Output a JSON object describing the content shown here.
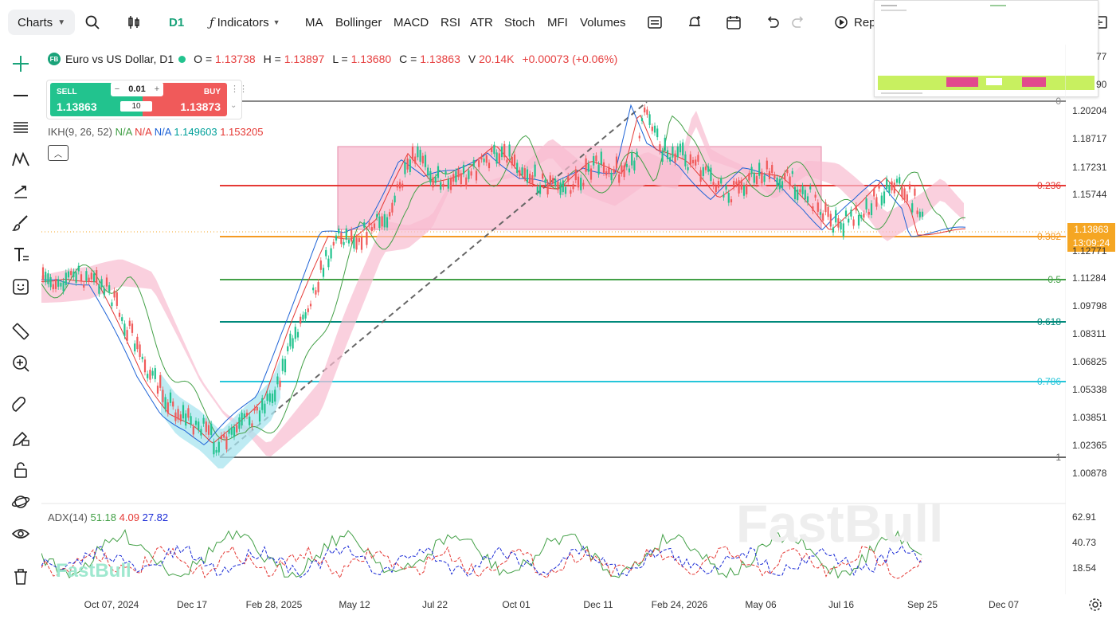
{
  "toolbar": {
    "charts_label": "Charts",
    "timeframe": "D1",
    "indicators_label": "Indicators",
    "items": [
      "MA",
      "Bollinger",
      "MACD",
      "RSI",
      "ATR",
      "Stoch",
      "MFI",
      "Volumes"
    ],
    "replay_label": "Repl"
  },
  "legend": {
    "badge": "FB",
    "symbol": "Euro vs US Dollar, D1",
    "o_label": "O =",
    "o": "1.13738",
    "h_label": "H =",
    "h": "1.13897",
    "l_label": "L =",
    "l": "1.13680",
    "c_label": "C =",
    "c": "1.13863",
    "v_label": "V",
    "v": "20.14K",
    "change": "+0.00073 (+0.06%)"
  },
  "trade": {
    "sell_label": "SELL",
    "sell_price": "1.13863",
    "buy_label": "BUY",
    "buy_price": "1.13873",
    "step": "0.01",
    "lots": "10",
    "minus": "−",
    "plus": "+"
  },
  "ikh": {
    "label": "IKH(9, 26, 52)",
    "v1": "N/A",
    "v2": "N/A",
    "v3": "N/A",
    "v4": "1.149603",
    "v5": "1.153205"
  },
  "adx": {
    "label": "ADX(14)",
    "v1": "51.18",
    "v2": "4.09",
    "v3": "27.82"
  },
  "price_axis": [
    "1.20204",
    "1.18717",
    "1.17231",
    "1.15744",
    "1.12771",
    "1.11284",
    "1.09798",
    "1.08311",
    "1.06825",
    "1.05338",
    "1.03851",
    "1.02365",
    "1.00878"
  ],
  "thumb_axis": [
    "77",
    "90"
  ],
  "adx_axis": [
    "62.91",
    "40.73",
    "18.54"
  ],
  "time_axis": [
    "Oct 07, 2024",
    "Dec 17",
    "Feb 28, 2025",
    "May 12",
    "Jul 22",
    "Oct 01",
    "Dec 11",
    "Feb 24, 2026",
    "May 06",
    "Jul 16",
    "Sep 25",
    "Dec 07"
  ],
  "fib": [
    {
      "label": "0",
      "color": "#888888"
    },
    {
      "label": "0.236",
      "color": "#e53935"
    },
    {
      "label": "0.382",
      "color": "#f59a23"
    },
    {
      "label": "0.5",
      "color": "#43a047"
    },
    {
      "label": "0.618",
      "color": "#00897b"
    },
    {
      "label": "0.786",
      "color": "#26c6da"
    },
    {
      "label": "1",
      "color": "#666666"
    }
  ],
  "current": {
    "price": "1.13863",
    "countdown": "13:09:24"
  },
  "watermark": "FastBull",
  "colors": {
    "bull": "#22c38e",
    "bear": "#f05a5a",
    "accent": "#f5a623",
    "rect": "#f8bcd0"
  }
}
